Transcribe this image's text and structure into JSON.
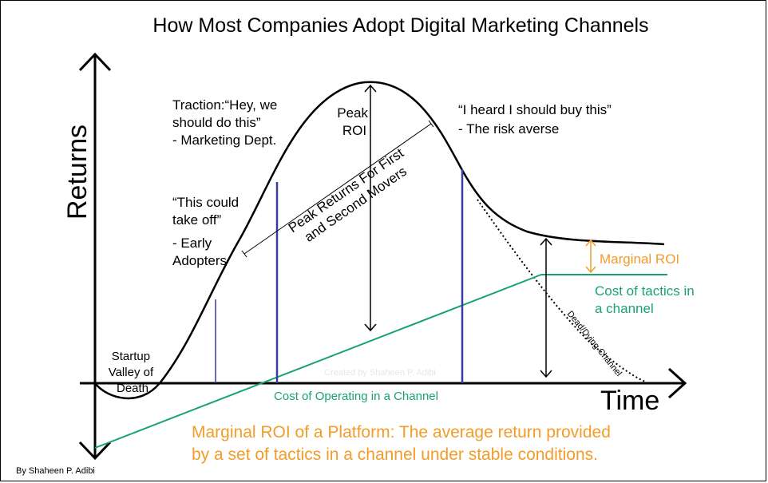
{
  "title": "How Most Companies Adopt Digital Marketing Channels",
  "axes": {
    "y_label": "Returns",
    "x_label": "Time"
  },
  "annotations": {
    "valley": [
      "Startup",
      "Valley of",
      "Death"
    ],
    "early": [
      "“This could",
      "take off”",
      "",
      "- Early",
      "Adopters"
    ],
    "traction": [
      "Traction:“Hey, we",
      "should do this”",
      " - Marketing Dept."
    ],
    "peak_roi": [
      "Peak",
      "ROI"
    ],
    "peak_returns": [
      "Peak Returns For First",
      "and Second Movers"
    ],
    "risk": [
      "“I heard I should buy this”",
      "  - The risk averse"
    ],
    "marginal_roi": "Marginal ROI",
    "cost_tactics": [
      "Cost of tactics in",
      "a channel"
    ],
    "dead_channel": "Dead/Dying Channel",
    "cost_operating": "Cost of Operating in a Channel",
    "watermark": "Created by Shaheen P. Adibi",
    "definition": [
      "Marginal ROI of a Platform: The average return provided",
      "by a set of tactics in a channel under stable conditions."
    ],
    "credit": "By Shaheen P. Adibi"
  },
  "colors": {
    "orange": "#f39c2a",
    "green": "#1aa36d",
    "blue": "#3b3b9c",
    "black": "#000000"
  }
}
